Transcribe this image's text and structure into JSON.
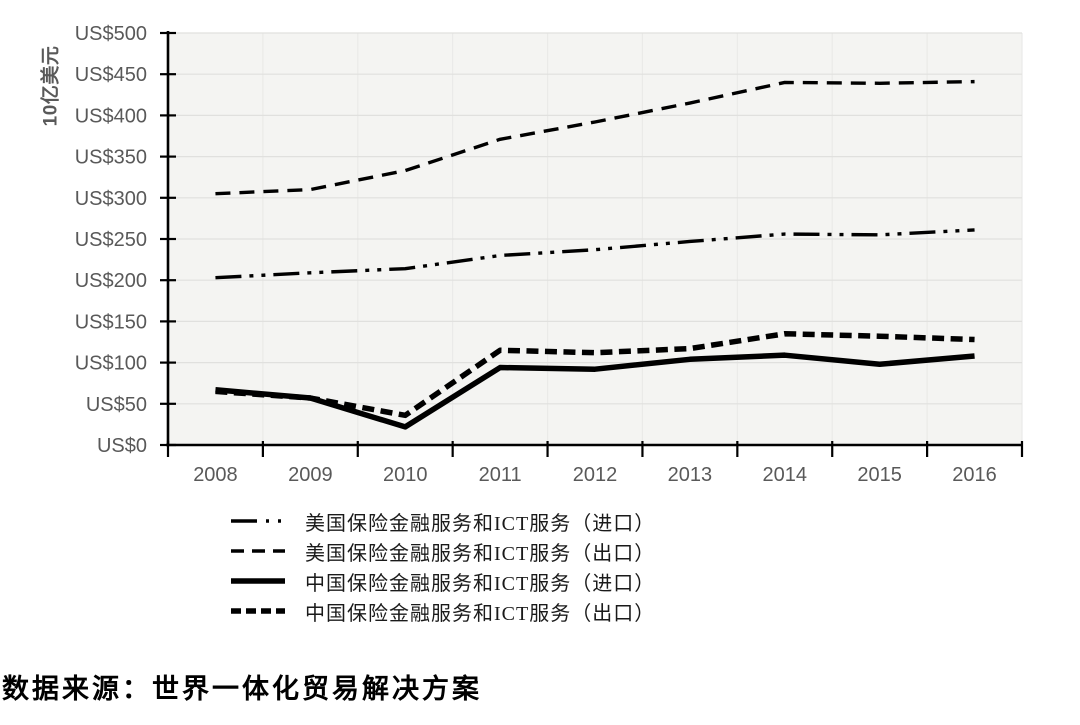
{
  "chart_data": {
    "type": "line",
    "title": "",
    "ylabel": "10亿美元",
    "xlabel": "",
    "ylim": [
      0,
      500
    ],
    "y_tick_labels": [
      "US$0",
      "US$50",
      "US$100",
      "US$150",
      "US$200",
      "US$250",
      "US$300",
      "US$350",
      "US$400",
      "US$450",
      "US$500"
    ],
    "categories": [
      "2008",
      "2009",
      "2010",
      "2011",
      "2012",
      "2013",
      "2014",
      "2015",
      "2016"
    ],
    "grid": true,
    "legend_position": "bottom-left",
    "line_color": "#000000",
    "series": [
      {
        "id": "us-imports",
        "name": "美国保险金融服务和ICT服务（进口）",
        "line_style": "dash-dot-dot",
        "weight": "medium",
        "values": [
          203,
          209,
          214,
          230,
          237,
          247,
          256,
          255,
          261
        ]
      },
      {
        "id": "us-exports",
        "name": "美国保险金融服务和ICT服务（出口）",
        "line_style": "dashed",
        "weight": "medium",
        "values": [
          305,
          310,
          333,
          371,
          392,
          415,
          440,
          439,
          441
        ]
      },
      {
        "id": "china-imports",
        "name": "中国保险金融服务和ICT服务（进口）",
        "line_style": "solid",
        "weight": "thick",
        "values": [
          67,
          57,
          22,
          94,
          92,
          104,
          109,
          98,
          108
        ]
      },
      {
        "id": "china-exports",
        "name": "中国保险金融服务和ICT服务（出口）",
        "line_style": "dashed",
        "weight": "thick",
        "values": [
          65,
          57,
          36,
          115,
          112,
          117,
          135,
          132,
          128
        ]
      }
    ]
  },
  "caption": {
    "text": "数据来源：世界一体化贸易解决方案"
  },
  "colors": {
    "plot_background": "#f4f4f2",
    "gridline": "#e0e0de",
    "vertical_gridline": "#eaeae8",
    "axis": "#000000",
    "tick_label": "#595959",
    "series": "#000000"
  }
}
